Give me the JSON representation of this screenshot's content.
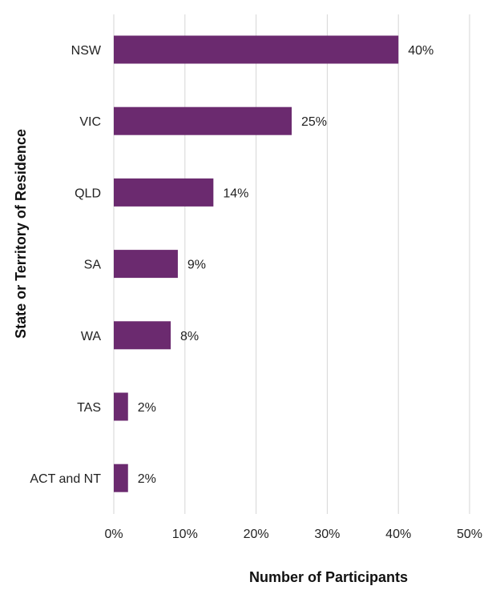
{
  "chart_data": {
    "type": "bar",
    "orientation": "horizontal",
    "categories": [
      "NSW",
      "VIC",
      "QLD",
      "SA",
      "WA",
      "TAS",
      "ACT and NT"
    ],
    "values": [
      40,
      25,
      14,
      9,
      8,
      2,
      2
    ],
    "data_labels": [
      "40%",
      "25%",
      "14%",
      "9%",
      "8%",
      "2%",
      "2%"
    ],
    "xlim": [
      0,
      50
    ],
    "xticks": [
      0,
      10,
      20,
      30,
      40,
      50
    ],
    "xtick_labels": [
      "0%",
      "10%",
      "20%",
      "30%",
      "40%",
      "50%"
    ],
    "xlabel": "Number of Participants",
    "ylabel": "State or Territory of Residence",
    "grid": "vertical",
    "legend": "none",
    "colors": {
      "bar": "#6b2a6f",
      "grid": "#d6d6d6",
      "text": "#222222"
    }
  }
}
